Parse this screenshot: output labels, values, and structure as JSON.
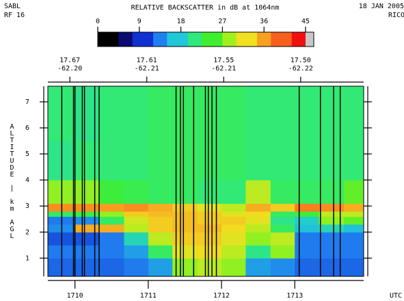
{
  "chart_data": {
    "type": "heatmap",
    "header_left": [
      "SABL",
      "RF 16"
    ],
    "title": "RELATIVE BACKSCATTER in dB at 1064nm",
    "header_right": [
      "18 JAN 2005",
      "RICO"
    ],
    "ylabel": "ALTITUDE | km AGL",
    "xlabel": "UTC",
    "colorbar": {
      "lim": [
        0,
        45
      ],
      "ticks": [
        0,
        9,
        18,
        27,
        36,
        45
      ],
      "colorscale": [
        "#000000",
        "#0a0a70",
        "#1030d0",
        "#2080f0",
        "#20c8d8",
        "#30e880",
        "#40ee30",
        "#a0f020",
        "#f0e020",
        "#f8a020",
        "#f86020",
        "#f01010"
      ],
      "over_color": "#c8c8c8"
    },
    "xlim": [
      1709.63,
      1713.94
    ],
    "xticks": [
      1710,
      1711,
      1712,
      1713
    ],
    "ylim": [
      0.3,
      7.6
    ],
    "yticks": [
      1,
      2,
      3,
      4,
      5,
      6,
      7
    ],
    "top_axis": [
      {
        "x": 1709.93,
        "lat": "17.67",
        "lon": "-62.20"
      },
      {
        "x": 1710.98,
        "lat": "17.61",
        "lon": "-62.21"
      },
      {
        "x": 1712.03,
        "lat": "17.55",
        "lon": "-62.21"
      },
      {
        "x": 1713.08,
        "lat": "17.50",
        "lon": "-62.22"
      }
    ],
    "x_bins": [
      1709.63,
      1710,
      1710.33,
      1710.67,
      1711,
      1711.33,
      1711.67,
      1712,
      1712.33,
      1712.67,
      1713,
      1713.33,
      1713.67,
      1713.94
    ],
    "y_bins": [
      0.3,
      1,
      1.5,
      2,
      2.3,
      2.6,
      2.8,
      3.1,
      4,
      5.5,
      7.6
    ],
    "z": [
      [
        11,
        11,
        11,
        12,
        14,
        28,
        30,
        28,
        14,
        13,
        11,
        11,
        11
      ],
      [
        12,
        12,
        12,
        14,
        22,
        32,
        33,
        30,
        20,
        28,
        12,
        12,
        12
      ],
      [
        10,
        10,
        12,
        18,
        30,
        34,
        34,
        32,
        28,
        30,
        12,
        12,
        12
      ],
      [
        13,
        36,
        36,
        30,
        34,
        35,
        35,
        33,
        30,
        22,
        16,
        18,
        16
      ],
      [
        12,
        13,
        22,
        31,
        34,
        35,
        34,
        34,
        32,
        20,
        17,
        28,
        26
      ],
      [
        22,
        24,
        28,
        34,
        35,
        35,
        34,
        32,
        33,
        22,
        24,
        30,
        30
      ],
      [
        38,
        38,
        37,
        38,
        36,
        34,
        32,
        30,
        36,
        34,
        39,
        38,
        36
      ],
      [
        28,
        28,
        24,
        23,
        22,
        22,
        21,
        21,
        30,
        22,
        22,
        22,
        26
      ],
      [
        20,
        21,
        21,
        21,
        22,
        22,
        22,
        22,
        21,
        21,
        21,
        21,
        21
      ],
      [
        21,
        20,
        21,
        21,
        22,
        22,
        22,
        22,
        21,
        21,
        21,
        21,
        21
      ]
    ],
    "dropouts": [
      1709.82,
      1709.98,
      1710.0,
      1710.1,
      1710.13,
      1710.27,
      1710.33,
      1711.38,
      1711.44,
      1711.48,
      1711.62,
      1711.78,
      1711.82,
      1711.87,
      1711.93,
      1713.06,
      1713.35,
      1713.53,
      1713.62
    ]
  }
}
